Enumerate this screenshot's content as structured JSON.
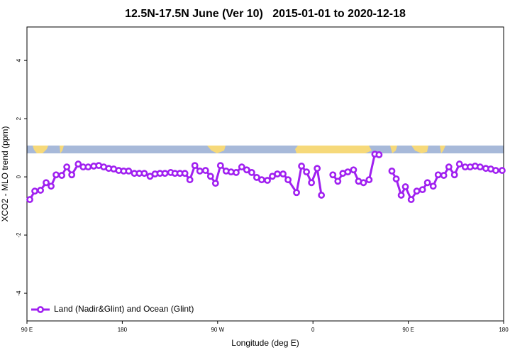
{
  "chart_data": {
    "type": "line",
    "title": "12.5N-17.5N June (Ver 10)   2015-01-01 to 2020-12-18",
    "xlabel": "Longitude (deg E)",
    "ylabel": "XCO2 - MLO trend (ppm)",
    "xlim": [
      90,
      540
    ],
    "ylim": [
      -4.95,
      5.15
    ],
    "xticks": [
      {
        "value": 90,
        "label": "90 E"
      },
      {
        "value": 180,
        "label": "180"
      },
      {
        "value": 270,
        "label": "90 W"
      },
      {
        "value": 360,
        "label": "0"
      },
      {
        "value": 450,
        "label": "90 E"
      },
      {
        "value": 540,
        "label": "180"
      }
    ],
    "yticks": [
      -4,
      -2,
      0,
      2,
      4
    ],
    "legend": "bottomleft",
    "series": [
      {
        "name": "Land (Nadir&Glint) and Ocean (Glint)",
        "color": "#a020f0",
        "x": [
          92.7,
          97.4,
          102.8,
          108.1,
          112.8,
          117.5,
          122.9,
          127.6,
          132.3,
          138.4,
          143.1,
          147.8,
          153.1,
          157.8,
          162.5,
          167.2,
          171.9,
          176.6,
          181.3,
          186,
          191.4,
          196.1,
          200.8,
          206.2,
          210.9,
          215.6,
          220.3,
          225.7,
          229.7,
          234.4,
          239.1,
          243.8,
          248.5,
          253.2,
          258.6,
          263.3,
          268,
          272.7,
          278,
          282.7,
          287.5,
          292.8,
          297.5,
          302.2,
          306.9,
          311.6,
          317,
          321.7,
          326.4,
          331.8,
          336.5,
          344.5,
          349.2,
          353.9,
          358.6,
          364,
          368,
          375,
          378.8,
          383.5,
          388.2,
          392.9,
          398.3,
          403,
          407.7,
          413,
          418.4,
          422.4,
          428,
          434.5,
          438.6,
          443.3,
          447.3,
          452.7,
          458,
          463.4,
          468.1,
          473.5,
          478.2,
          483.5,
          488.3,
          493.6,
          498.3,
          503.7,
          508.4,
          513.1,
          517.8,
          523.2,
          527.9,
          532.6,
          538.6
        ],
        "values": [
          -0.78,
          -0.49,
          -0.46,
          -0.2,
          -0.32,
          0.07,
          0.05,
          0.34,
          0.07,
          0.44,
          0.34,
          0.34,
          0.37,
          0.39,
          0.34,
          0.29,
          0.27,
          0.22,
          0.2,
          0.2,
          0.12,
          0.12,
          0.12,
          0.02,
          0.1,
          0.12,
          0.12,
          0.15,
          0.12,
          0.12,
          0.12,
          -0.1,
          0.39,
          0.2,
          0.22,
          0.02,
          -0.22,
          0.39,
          0.2,
          0.17,
          0.15,
          0.34,
          0.24,
          0.15,
          -0.02,
          -0.1,
          -0.12,
          0.02,
          0.1,
          0.1,
          -0.1,
          -0.54,
          0.37,
          0.17,
          -0.2,
          0.29,
          -0.63,
          null,
          0.07,
          -0.15,
          0.12,
          0.17,
          0.24,
          -0.15,
          -0.2,
          -0.1,
          0.78,
          0.76,
          null,
          0.2,
          -0.07,
          -0.63,
          -0.34,
          -0.78,
          -0.49,
          -0.44,
          -0.2,
          -0.32,
          0.07,
          0.05,
          0.34,
          0.07,
          0.44,
          0.34,
          0.34,
          0.37,
          0.34,
          0.29,
          0.27,
          0.22,
          0.22
        ]
      }
    ]
  }
}
